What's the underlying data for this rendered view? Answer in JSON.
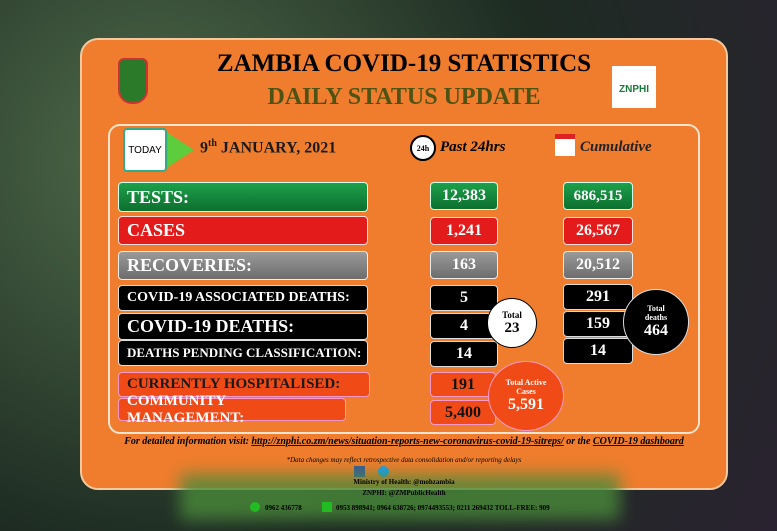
{
  "header": {
    "title": "ZAMBIA COVID-19 STATISTICS",
    "subtitle": "DAILY STATUS UPDATE",
    "logo_text": "ZNPHI"
  },
  "date": {
    "icon": "TODAY",
    "day": "9",
    "suffix": "th",
    "rest": "JANUARY, 2021"
  },
  "columns": {
    "past_icon": "24h",
    "past": "Past 24hrs",
    "cumulative": "Cumulative"
  },
  "rows": [
    {
      "label": "TESTS:",
      "past": "12,383",
      "cumulative": "686,515"
    },
    {
      "label": "CASES",
      "past": "1,241",
      "cumulative": "26,567"
    },
    {
      "label": "RECOVERIES:",
      "past": "163",
      "cumulative": "20,512"
    },
    {
      "label": "COVID-19 ASSOCIATED DEATHS:",
      "past": "5",
      "cumulative": "291"
    },
    {
      "label": "COVID-19 DEATHS:",
      "past": "4",
      "cumulative": "159"
    },
    {
      "label": "DEATHS PENDING CLASSIFICATION:",
      "past": "14",
      "cumulative": "14"
    }
  ],
  "care": [
    {
      "label": "CURRENTLY HOSPITALISED:",
      "past": "191"
    },
    {
      "label": "COMMUNITY MANAGEMENT:",
      "past": "5,400"
    }
  ],
  "totals": {
    "deaths_past": {
      "label": "Total",
      "value": "23"
    },
    "deaths_cumulative": {
      "label": "Total deaths",
      "value": "464"
    },
    "active": {
      "label": "Total Active Cases",
      "value": "5,591"
    }
  },
  "footer": {
    "visit": "For detailed information visit:",
    "link": "http://znphi.co.zm/news/situation-reports-new-coronavirus-covid-19-sitreps/",
    "or": "or the",
    "dashboard": "COVID-19 dashboard",
    "note": "*Data changes may reflect retrospective data consolidation and/or reporting delays",
    "ministry": "Ministry of Health: @mohzambia",
    "znphi": "ZNPHI: @ZMPublicHealth",
    "phone1": "0962 436778",
    "phone2": "0953 898941; 0964 638726; 0974493553; 0211 269432 TOLL-FREE: 909"
  }
}
